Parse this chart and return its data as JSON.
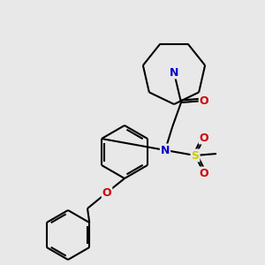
{
  "bg_color": "#e8e8e8",
  "atom_colors": {
    "C": "#000000",
    "N": "#0000cc",
    "O": "#cc0000",
    "S": "#cccc00"
  },
  "bond_color": "#000000",
  "bond_width": 1.5,
  "figsize": [
    3.0,
    3.0
  ],
  "dpi": 100,
  "scale": 1.0
}
